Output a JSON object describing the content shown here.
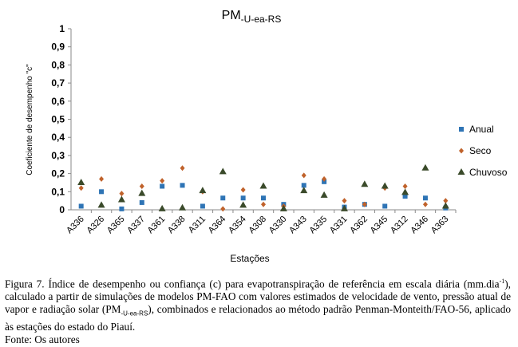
{
  "chart_data": {
    "type": "scatter",
    "title_main": "PM",
    "title_sub": "-U-ea-RS",
    "xlabel": "Estações",
    "ylabel": "Coeficiente de desempenho \"c\"",
    "ylim": [
      0,
      1
    ],
    "yticks": [
      "0",
      "0,1",
      "0,2",
      "0,3",
      "0,4",
      "0,5",
      "0,6",
      "0,7",
      "0,8",
      "0,9",
      "1"
    ],
    "grid": false,
    "legend_position": "right",
    "categories": [
      "A336",
      "A326",
      "A365",
      "A337",
      "A361",
      "A338",
      "A311",
      "A364",
      "A354",
      "A308",
      "A330",
      "A343",
      "A335",
      "A331",
      "A362",
      "A345",
      "A312",
      "A346",
      "A363"
    ],
    "series": [
      {
        "name": "Anual",
        "marker": "square",
        "color": "#2e74b5",
        "values": [
          0.02,
          0.1,
          0.005,
          0.04,
          0.13,
          0.135,
          0.02,
          0.065,
          0.065,
          0.065,
          0.03,
          0.135,
          0.155,
          0.015,
          0.03,
          0.02,
          0.075,
          0.065,
          0.01
        ]
      },
      {
        "name": "Seco",
        "marker": "diamond",
        "color": "#c0622b",
        "values": [
          0.12,
          0.17,
          0.09,
          0.13,
          0.16,
          0.23,
          0.1,
          0.005,
          0.11,
          0.03,
          0.02,
          0.19,
          0.17,
          0.05,
          0.03,
          0.12,
          0.13,
          0.03,
          0.05
        ]
      },
      {
        "name": "Chuvoso",
        "marker": "triangle",
        "color": "#3a4a2a",
        "values": [
          0.15,
          0.025,
          0.055,
          0.09,
          0.005,
          0.01,
          0.105,
          0.21,
          0.025,
          0.13,
          0.005,
          0.105,
          0.08,
          0.005,
          0.14,
          0.13,
          0.095,
          0.23,
          0.02
        ]
      }
    ]
  },
  "caption": {
    "t1": "Figura 7. Índice de desempenho ou confiança (c) para evapotranspiração de referência em escala diária (mm.dia",
    "sup": "-1",
    "t2": "), calculado a partir de simulações de modelos PM-FAO com valores estimados de velocidade de vento, pressão atual de vapor e radiação solar (PM",
    "sub": "-U-ea-RS",
    "t3": "), combinados e relacionados ao método padrão Penman-Monteith/FAO-56, aplicado às estações do estado do Piauí.",
    "source": "Fonte: Os autores"
  }
}
